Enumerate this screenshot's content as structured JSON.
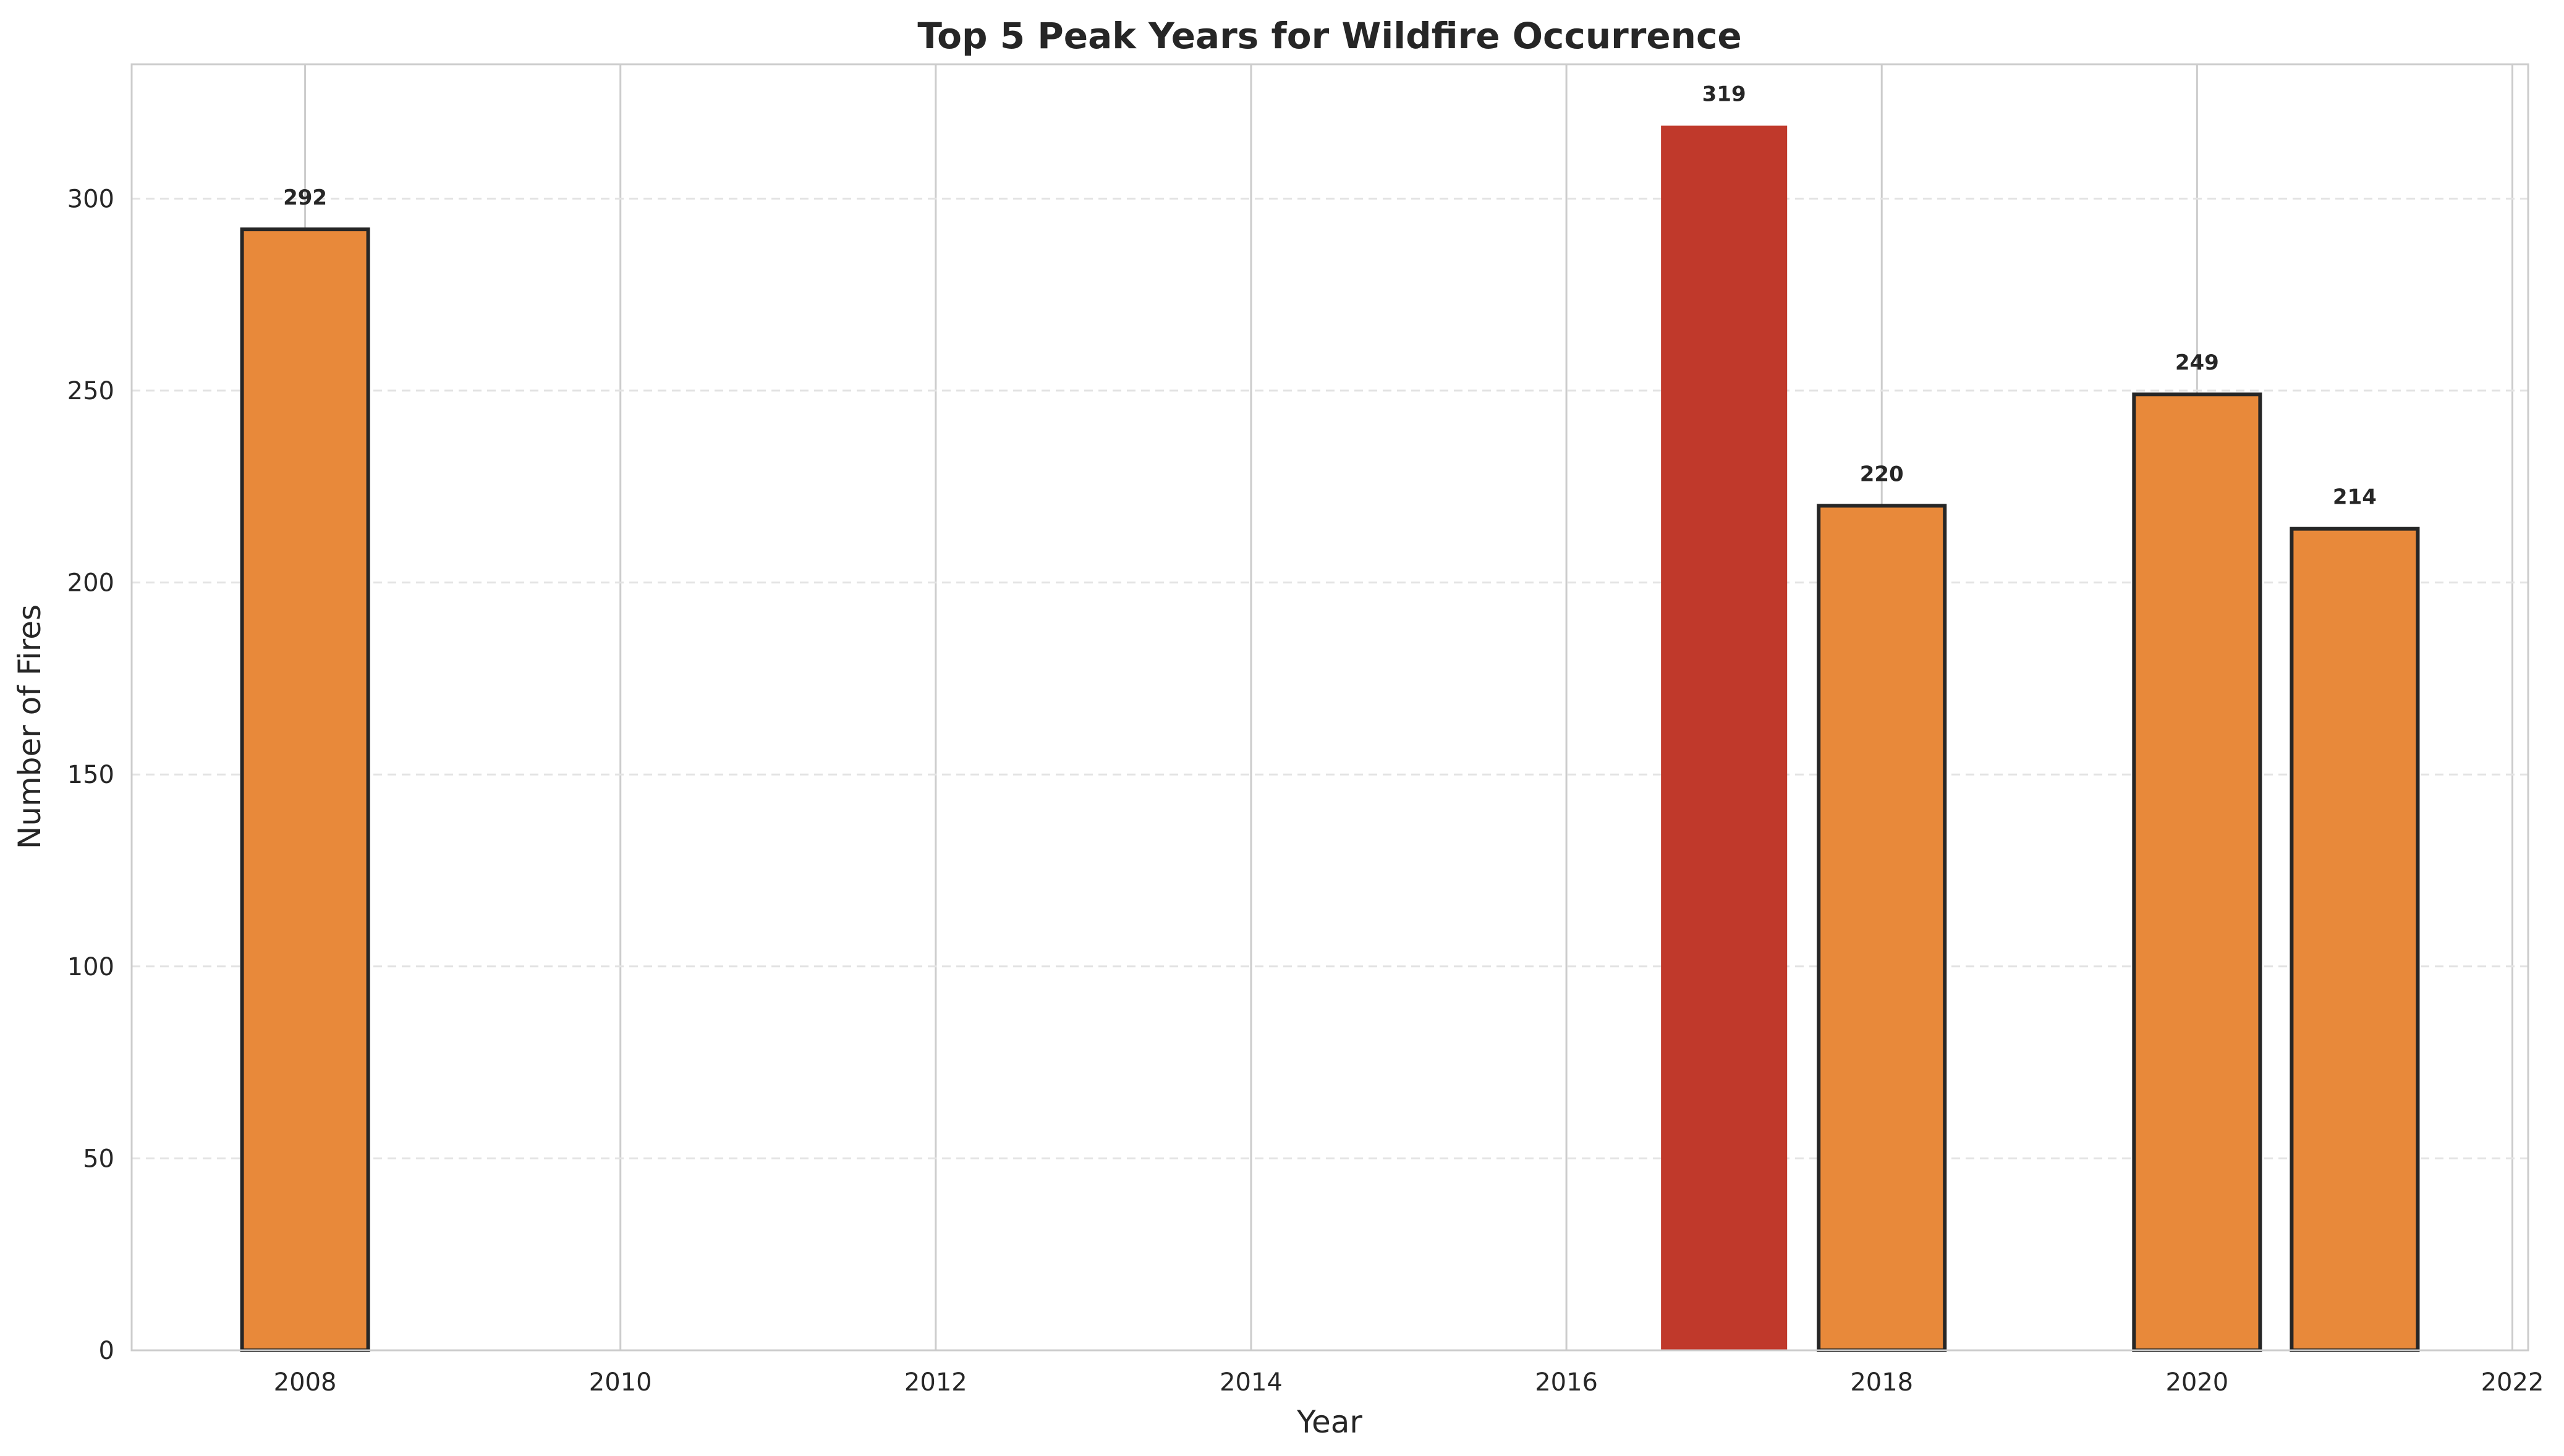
{
  "chart_data": {
    "type": "bar",
    "title": "Top 5 Peak Years for Wildfire Occurrence",
    "xlabel": "Year",
    "ylabel": "Number of Fires",
    "x": [
      2008,
      2017,
      2018,
      2020,
      2021
    ],
    "values": [
      292,
      319,
      220,
      249,
      214
    ],
    "data_labels": [
      "292",
      "319",
      "220",
      "249",
      "214"
    ],
    "highlight": [
      false,
      true,
      false,
      false,
      false
    ],
    "xlim": [
      2006.9,
      2022.1
    ],
    "ylim": [
      0,
      335
    ],
    "xticks": [
      2008,
      2010,
      2012,
      2014,
      2016,
      2018,
      2020,
      2022
    ],
    "yticks": [
      0,
      50,
      100,
      150,
      200,
      250,
      300
    ],
    "bar_width": 0.8,
    "grid": {
      "x": true,
      "y": true,
      "y_dashed": true
    },
    "colors": {
      "bar": "#E8893A",
      "highlight": "#C0392B",
      "edge": "#262626",
      "grid": "#CCCCCC",
      "spine": "#CCCCCC"
    }
  }
}
